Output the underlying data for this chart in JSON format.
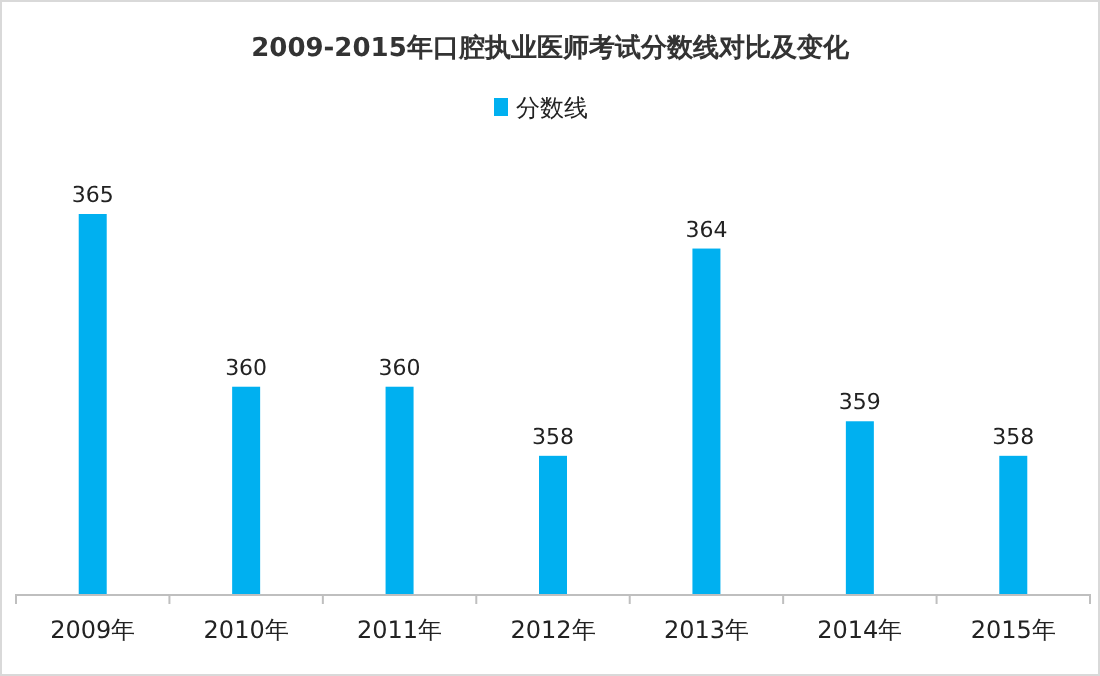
{
  "chart_data": {
    "type": "bar",
    "title": "2009-2015年口腔执业医师考试分数线对比及变化",
    "categories": [
      "2009年",
      "2010年",
      "2011年",
      "2012年",
      "2013年",
      "2014年",
      "2015年"
    ],
    "series": [
      {
        "name": "分数线",
        "color": "#00b0f0",
        "values": [
          365,
          360,
          360,
          358,
          364,
          359,
          358
        ]
      }
    ],
    "ylim": [
      354,
      365
    ],
    "data_labels": true,
    "legend": "top"
  }
}
